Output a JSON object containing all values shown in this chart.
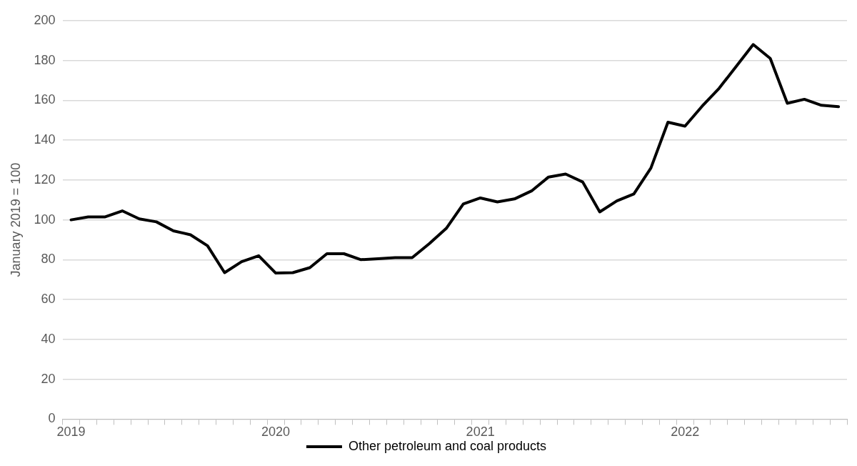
{
  "chart_data": {
    "type": "line",
    "ylabel": "January 2019 = 100",
    "categories": [
      "2019",
      null,
      null,
      null,
      null,
      null,
      null,
      null,
      null,
      null,
      null,
      null,
      "2020",
      null,
      null,
      null,
      null,
      null,
      null,
      null,
      null,
      null,
      null,
      null,
      "2021",
      null,
      null,
      null,
      null,
      null,
      null,
      null,
      null,
      null,
      null,
      null,
      "2022",
      null,
      null,
      null,
      null,
      null,
      null,
      null,
      null,
      null
    ],
    "series": [
      {
        "name": "Other petroleum and coal products",
        "color": "#000000",
        "values": [
          100,
          101.5,
          101.5,
          104.5,
          100.5,
          99,
          94.5,
          92.5,
          87,
          73.5,
          79,
          82,
          73.3,
          73.5,
          76,
          83,
          83,
          80,
          80.5,
          81,
          81,
          88,
          95.7,
          108,
          111,
          109,
          110.5,
          114.5,
          121.5,
          123,
          119,
          104,
          109.5,
          113,
          126,
          149,
          147,
          157,
          166,
          177,
          188,
          181,
          158.5,
          160.5,
          157.5,
          156.8
        ]
      }
    ],
    "ylim": [
      0,
      200
    ],
    "yticks": [
      0,
      20,
      40,
      60,
      80,
      100,
      120,
      140,
      160,
      180,
      200
    ],
    "grid": "y",
    "legend": "bottom",
    "marker": "none",
    "line_style": "solid"
  }
}
